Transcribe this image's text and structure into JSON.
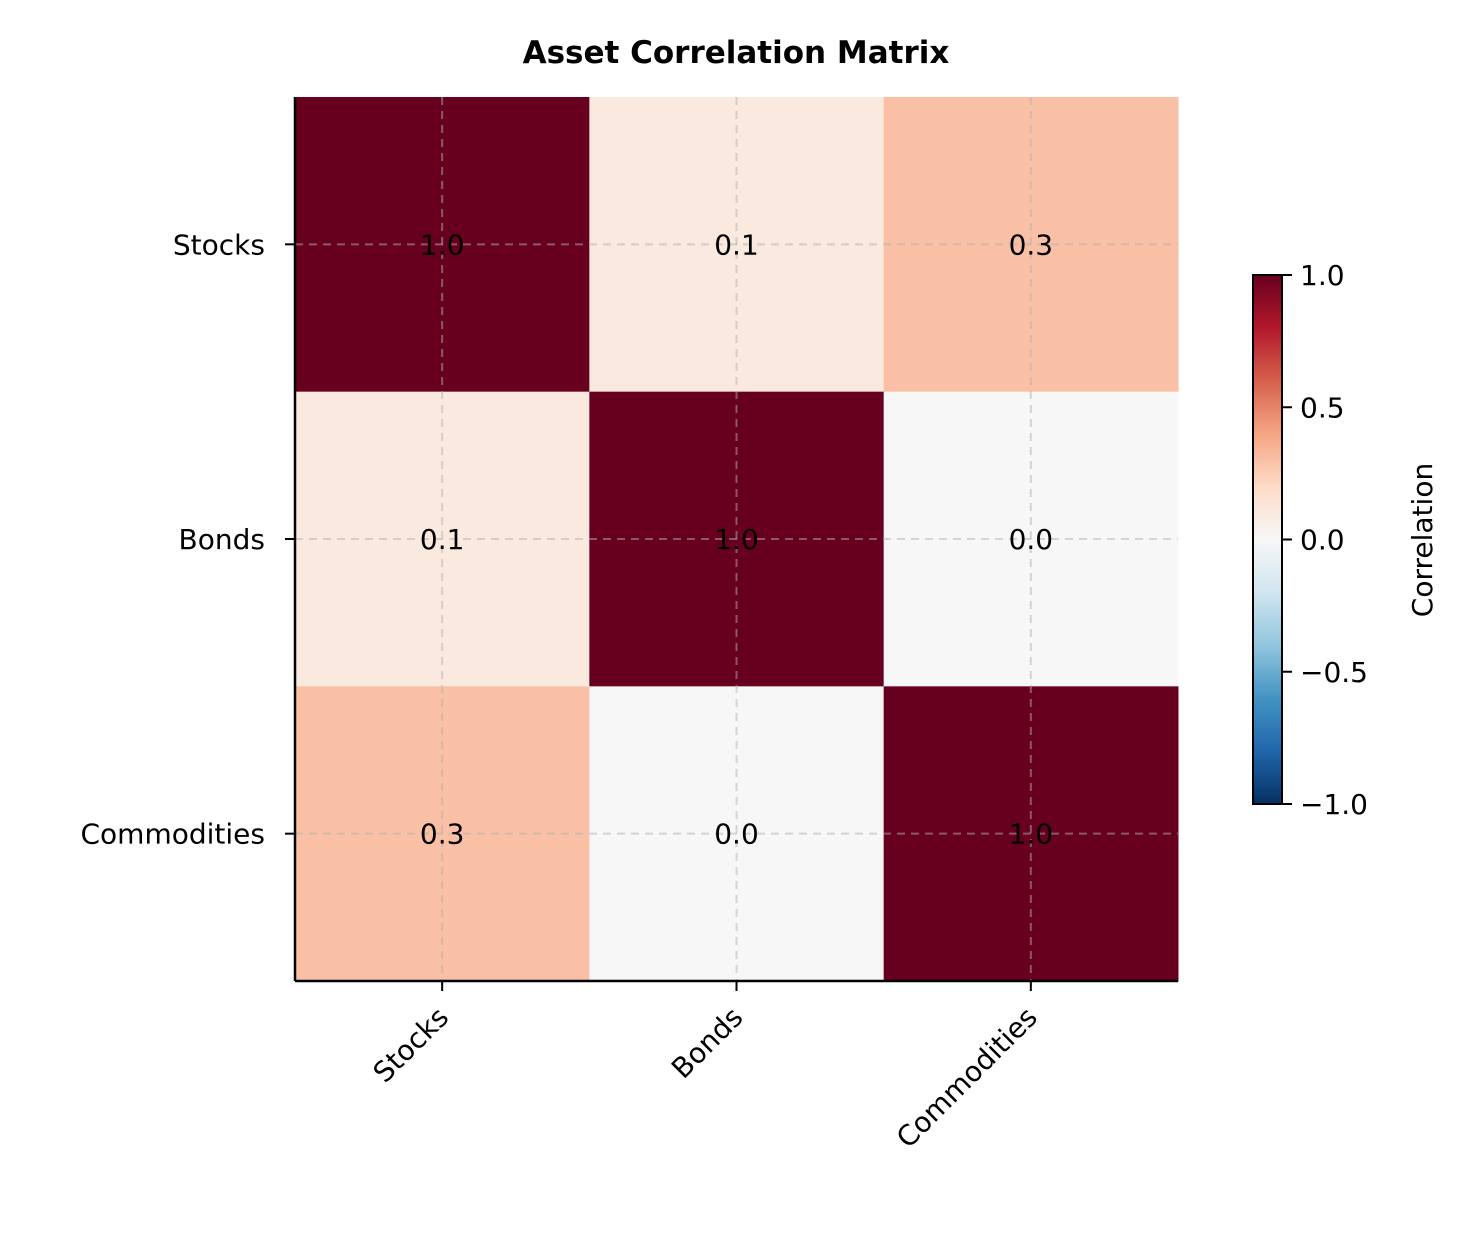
{
  "chart_data": {
    "type": "heatmap",
    "title": "Asset Correlation Matrix",
    "x_categories": [
      "Stocks",
      "Bonds",
      "Commodities"
    ],
    "y_categories": [
      "Stocks",
      "Bonds",
      "Commodities"
    ],
    "values": [
      [
        1.0,
        0.1,
        0.3
      ],
      [
        0.1,
        1.0,
        0.0
      ],
      [
        0.3,
        0.0,
        1.0
      ]
    ],
    "value_format": "0.0",
    "colormap": "RdBu_r",
    "vmin": -1.0,
    "vmax": 1.0,
    "colorbar": {
      "label": "Correlation",
      "ticks": [
        "1.0",
        "0.5",
        "0.0",
        "−0.5",
        "−1.0"
      ],
      "tick_values": [
        1.0,
        0.5,
        0.0,
        -0.5,
        -1.0
      ]
    },
    "grid": true
  }
}
